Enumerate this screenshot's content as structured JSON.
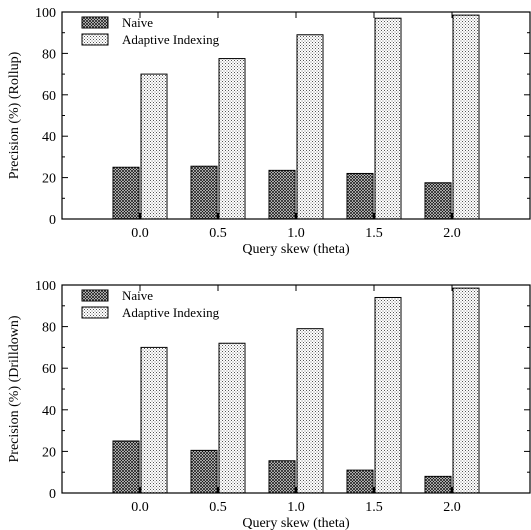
{
  "chart_data": [
    {
      "type": "bar",
      "xlabel": "Query skew (theta)",
      "ylabel": "Precision (%) (Rollup)",
      "categories": [
        "0.0",
        "0.5",
        "1.0",
        "1.5",
        "2.0"
      ],
      "ylim": [
        0,
        100
      ],
      "yticks": [
        "0",
        "20",
        "40",
        "60",
        "80",
        "100"
      ],
      "grid": false,
      "legend_position": "top-left",
      "series": [
        {
          "name": "Naive",
          "pattern": "crosshatch-dark",
          "values": [
            25,
            25.5,
            23.5,
            22,
            17.5
          ]
        },
        {
          "name": "Adaptive Indexing",
          "pattern": "dotted-light",
          "values": [
            70,
            77.5,
            89,
            97,
            98.5
          ]
        }
      ]
    },
    {
      "type": "bar",
      "xlabel": "Query skew (theta)",
      "ylabel": "Precision (%) (Drilldown)",
      "categories": [
        "0.0",
        "0.5",
        "1.0",
        "1.5",
        "2.0"
      ],
      "ylim": [
        0,
        100
      ],
      "yticks": [
        "0",
        "20",
        "40",
        "60",
        "80",
        "100"
      ],
      "grid": false,
      "legend_position": "top-left",
      "series": [
        {
          "name": "Naive",
          "pattern": "crosshatch-dark",
          "values": [
            25,
            20.5,
            15.5,
            11,
            8
          ]
        },
        {
          "name": "Adaptive Indexing",
          "pattern": "dotted-light",
          "values": [
            70,
            72,
            79,
            94,
            98.5
          ]
        }
      ]
    }
  ]
}
